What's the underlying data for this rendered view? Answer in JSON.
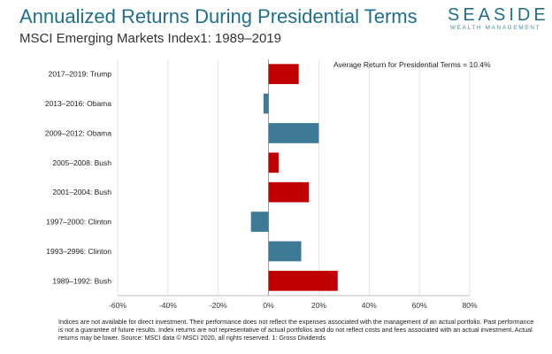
{
  "header": {
    "title": "Annualized Returns During Presidential Terms",
    "subtitle": "MSCI Emerging Markets Index1: 1989–2019"
  },
  "logo": {
    "name": "SEASIDE",
    "tagline": "WEALTH MANAGEMENT"
  },
  "footnote": "Indices are not available for direct investment. Their performance does not reflect the expenses associated with the management of an actual portfolio. Past performance is not a guarantee of future results. Index returns are not representative of actual portfolios and do not reflect costs and fees associated with an actual investment. Actual returns may be lower. Source: MSCI data © MSCI 2020, all rights reserved.   1: Gross Dividends",
  "colors": {
    "republican": "#c00000",
    "democrat": "#3e7a95",
    "title": "#1f6f8b"
  },
  "chart_data": {
    "type": "bar",
    "orientation": "horizontal",
    "title": "Annualized Returns During Presidential Terms",
    "subtitle": "MSCI Emerging Markets Index1: 1989–2019",
    "annotation": "Average Return for Presidential Terms = 10.4%",
    "categories": [
      "2017–2019: Trump",
      "2013–2016: Obama",
      "2009–2012: Obama",
      "2005–2008: Bush",
      "2001–2004: Bush",
      "1997–2000: Clinton",
      "1993–2996: Clinton",
      "1989–1992: Bush"
    ],
    "values": [
      12,
      -2,
      20,
      4,
      16,
      -7,
      13,
      27.5
    ],
    "party": [
      "republican",
      "democrat",
      "democrat",
      "republican",
      "republican",
      "democrat",
      "democrat",
      "republican"
    ],
    "xlim": [
      -60,
      80
    ],
    "ticks": [
      -60,
      -40,
      -20,
      0,
      20,
      40,
      60,
      80
    ],
    "tick_labels": [
      "-60%",
      "-40%",
      "-20%",
      "0%",
      "20%",
      "40%",
      "60%",
      "80%"
    ],
    "grid": true
  }
}
